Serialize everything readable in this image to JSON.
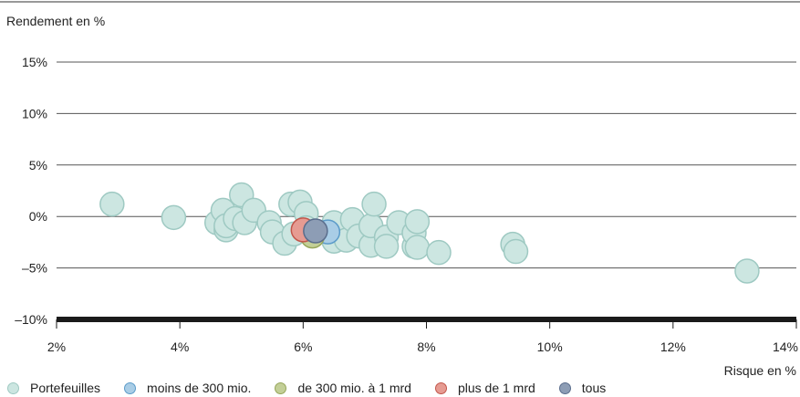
{
  "chart_data": {
    "type": "scatter",
    "title": "",
    "ylabel": "Rendement en %",
    "xlabel": "Risque en %",
    "xlim": [
      2,
      14
    ],
    "ylim": [
      -10,
      15
    ],
    "x_ticks": [
      2,
      4,
      6,
      8,
      10,
      12,
      14
    ],
    "y_ticks": [
      -10,
      -5,
      0,
      5,
      10,
      15
    ],
    "x_tick_labels": [
      "2%",
      "4%",
      "6%",
      "8%",
      "10%",
      "12%",
      "14%"
    ],
    "y_tick_labels": [
      "–10%",
      "–5%",
      "0%",
      "5%",
      "10%",
      "15%"
    ],
    "grid": "horizontal",
    "legend_position": "bottom",
    "series": [
      {
        "name": "Portefeuilles",
        "color": "#cce6e1",
        "stroke": "#9ec9c2",
        "points": [
          [
            2.9,
            1.2
          ],
          [
            3.9,
            -0.1
          ],
          [
            4.6,
            -0.6
          ],
          [
            4.7,
            0.6
          ],
          [
            4.75,
            -1.3
          ],
          [
            4.75,
            -0.9
          ],
          [
            4.9,
            -0.2
          ],
          [
            5.0,
            2.1
          ],
          [
            5.05,
            -0.6
          ],
          [
            5.2,
            0.6
          ],
          [
            5.45,
            -0.6
          ],
          [
            5.5,
            -1.5
          ],
          [
            5.7,
            -2.6
          ],
          [
            5.8,
            1.2
          ],
          [
            5.85,
            -1.7
          ],
          [
            5.95,
            1.4
          ],
          [
            6.05,
            0.3
          ],
          [
            6.05,
            -1.1
          ],
          [
            6.45,
            -1.2
          ],
          [
            6.5,
            -2.4
          ],
          [
            6.5,
            -0.6
          ],
          [
            6.7,
            -2.3
          ],
          [
            6.8,
            -0.3
          ],
          [
            6.9,
            -1.9
          ],
          [
            7.1,
            -2.8
          ],
          [
            7.1,
            -0.9
          ],
          [
            7.15,
            1.2
          ],
          [
            7.35,
            -2.0
          ],
          [
            7.35,
            -2.9
          ],
          [
            7.55,
            -0.6
          ],
          [
            7.8,
            -2.9
          ],
          [
            7.8,
            -1.6
          ],
          [
            7.85,
            -0.5
          ],
          [
            7.85,
            -3.0
          ],
          [
            8.2,
            -3.5
          ],
          [
            9.4,
            -2.7
          ],
          [
            9.45,
            -3.4
          ],
          [
            13.2,
            -5.3
          ]
        ]
      },
      {
        "name": "moins de 300 mio.",
        "color": "#a9cde6",
        "stroke": "#5b9bc9",
        "points": [
          [
            6.4,
            -1.5
          ]
        ]
      },
      {
        "name": "de 300 mio. à 1 mrd",
        "color": "#c3cf97",
        "stroke": "#96a65a",
        "points": [
          [
            6.15,
            -1.9
          ]
        ]
      },
      {
        "name": "plus de 1 mrd",
        "color": "#e69b92",
        "stroke": "#c2564b",
        "points": [
          [
            6.0,
            -1.3
          ]
        ]
      },
      {
        "name": "tous",
        "color": "#8d9db5",
        "stroke": "#5a6d8c",
        "points": [
          [
            6.2,
            -1.4
          ]
        ]
      }
    ]
  }
}
